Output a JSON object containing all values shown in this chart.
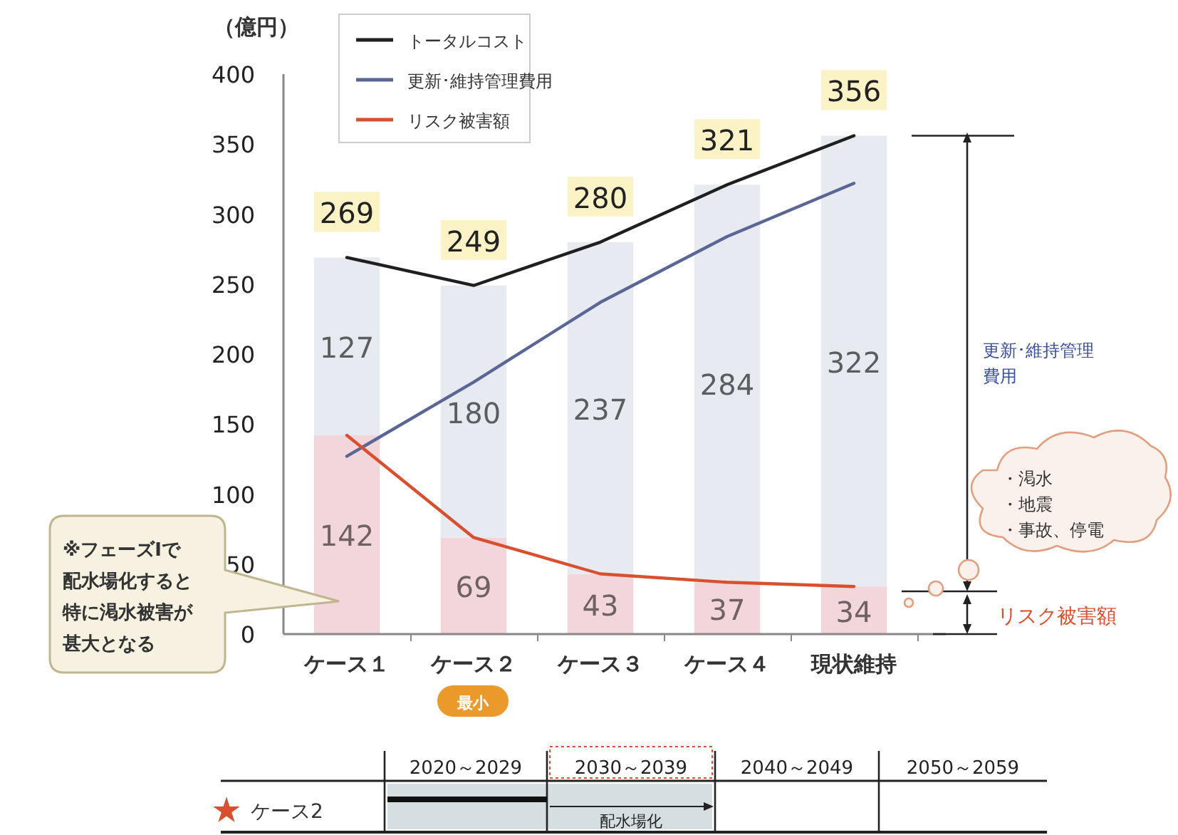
{
  "chart_data": {
    "type": "bar",
    "stacked": true,
    "ylabel": "（億円）",
    "categories": [
      "ケース１",
      "ケース２",
      "ケース３",
      "ケース４",
      "現状維持"
    ],
    "ylim": [
      0,
      400
    ],
    "yticks": [
      0,
      50,
      100,
      150,
      200,
      250,
      300,
      350,
      400
    ],
    "legend": "top",
    "grid": false,
    "series": [
      {
        "color": "#f3d6dc",
        "values": [
          142,
          69,
          43,
          37,
          34
        ],
        "value_labels": [
          "142",
          "69",
          "43",
          "37",
          "34"
        ]
      },
      {
        "color": "#e7ebf1",
        "values": [
          127,
          180,
          237,
          284,
          322
        ],
        "value_labels": [
          "127",
          "180",
          "237",
          "284",
          "322"
        ]
      },
      {
        "type": "line",
        "name": "トータルコスト",
        "color": "#1f1f1f",
        "values": [
          269,
          249,
          280,
          321,
          356
        ],
        "value_labels": [
          "269",
          "249",
          "280",
          "321",
          "356"
        ]
      },
      {
        "type": "line",
        "name": "更新･維持管理費用",
        "color": "#5a6796",
        "values": [
          127,
          180,
          237,
          284,
          322
        ]
      },
      {
        "type": "line",
        "name": "リスク被害額",
        "color": "#d9502f",
        "values": [
          142,
          69,
          43,
          37,
          34
        ]
      }
    ],
    "annotations": [
      "※フェーズⅠで配水場化すると特に渇水被害が甚大となる",
      "最小",
      "更新･維持管理費用",
      "リスク被害額",
      "・渇水",
      "・地震",
      "・事故、停電",
      "2020～2029",
      "2030～2039",
      "2040～2049",
      "2050～2059",
      "ケース2",
      "配水場化"
    ]
  }
}
